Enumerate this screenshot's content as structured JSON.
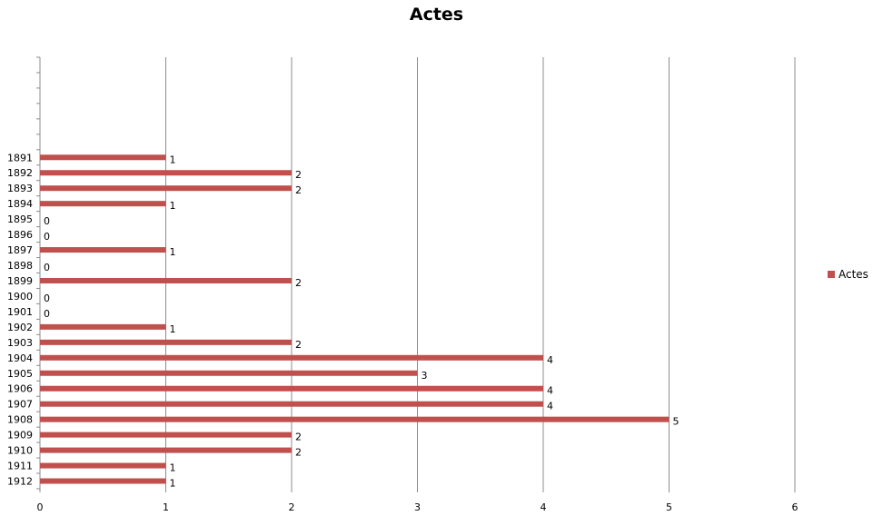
{
  "chart_data": {
    "type": "bar",
    "orientation": "horizontal",
    "title": "Actes",
    "xlabel": "",
    "ylabel": "",
    "xlim": [
      0,
      6
    ],
    "x_ticks": [
      "0",
      "1",
      "2",
      "3",
      "4",
      "5",
      "6"
    ],
    "categories": [
      "1891",
      "1892",
      "1893",
      "1894",
      "1895",
      "1896",
      "1897",
      "1898",
      "1899",
      "1900",
      "1901",
      "1902",
      "1903",
      "1904",
      "1905",
      "1906",
      "1907",
      "1908",
      "1909",
      "1910",
      "1911",
      "1912"
    ],
    "series": [
      {
        "name": "Actes",
        "color": "#c0504d",
        "values": [
          1,
          2,
          2,
          1,
          0,
          0,
          1,
          0,
          2,
          0,
          0,
          1,
          2,
          4,
          3,
          4,
          4,
          5,
          2,
          2,
          1,
          1
        ]
      }
    ],
    "empty_category_slots_above": 6,
    "grid": "vertical",
    "data_labels": true,
    "legend_position": "right"
  }
}
